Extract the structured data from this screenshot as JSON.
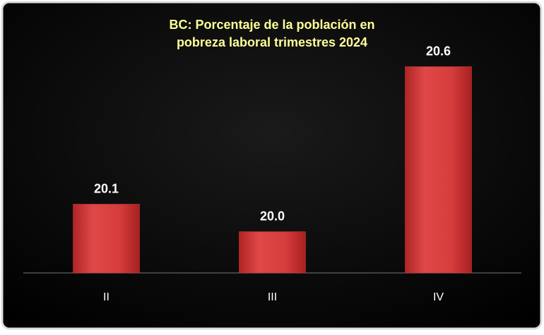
{
  "chart_data": {
    "type": "bar",
    "title": [
      "BC: Porcentaje de la población en",
      "pobreza laboral  trimestres 2024"
    ],
    "categories": [
      "II",
      "III",
      "IV"
    ],
    "values": [
      20.1,
      20.0,
      20.6
    ],
    "value_labels": [
      "20.1",
      "20.0",
      "20.6"
    ],
    "color": "#d63c3c",
    "ylim": [
      19.85,
      20.75
    ]
  }
}
